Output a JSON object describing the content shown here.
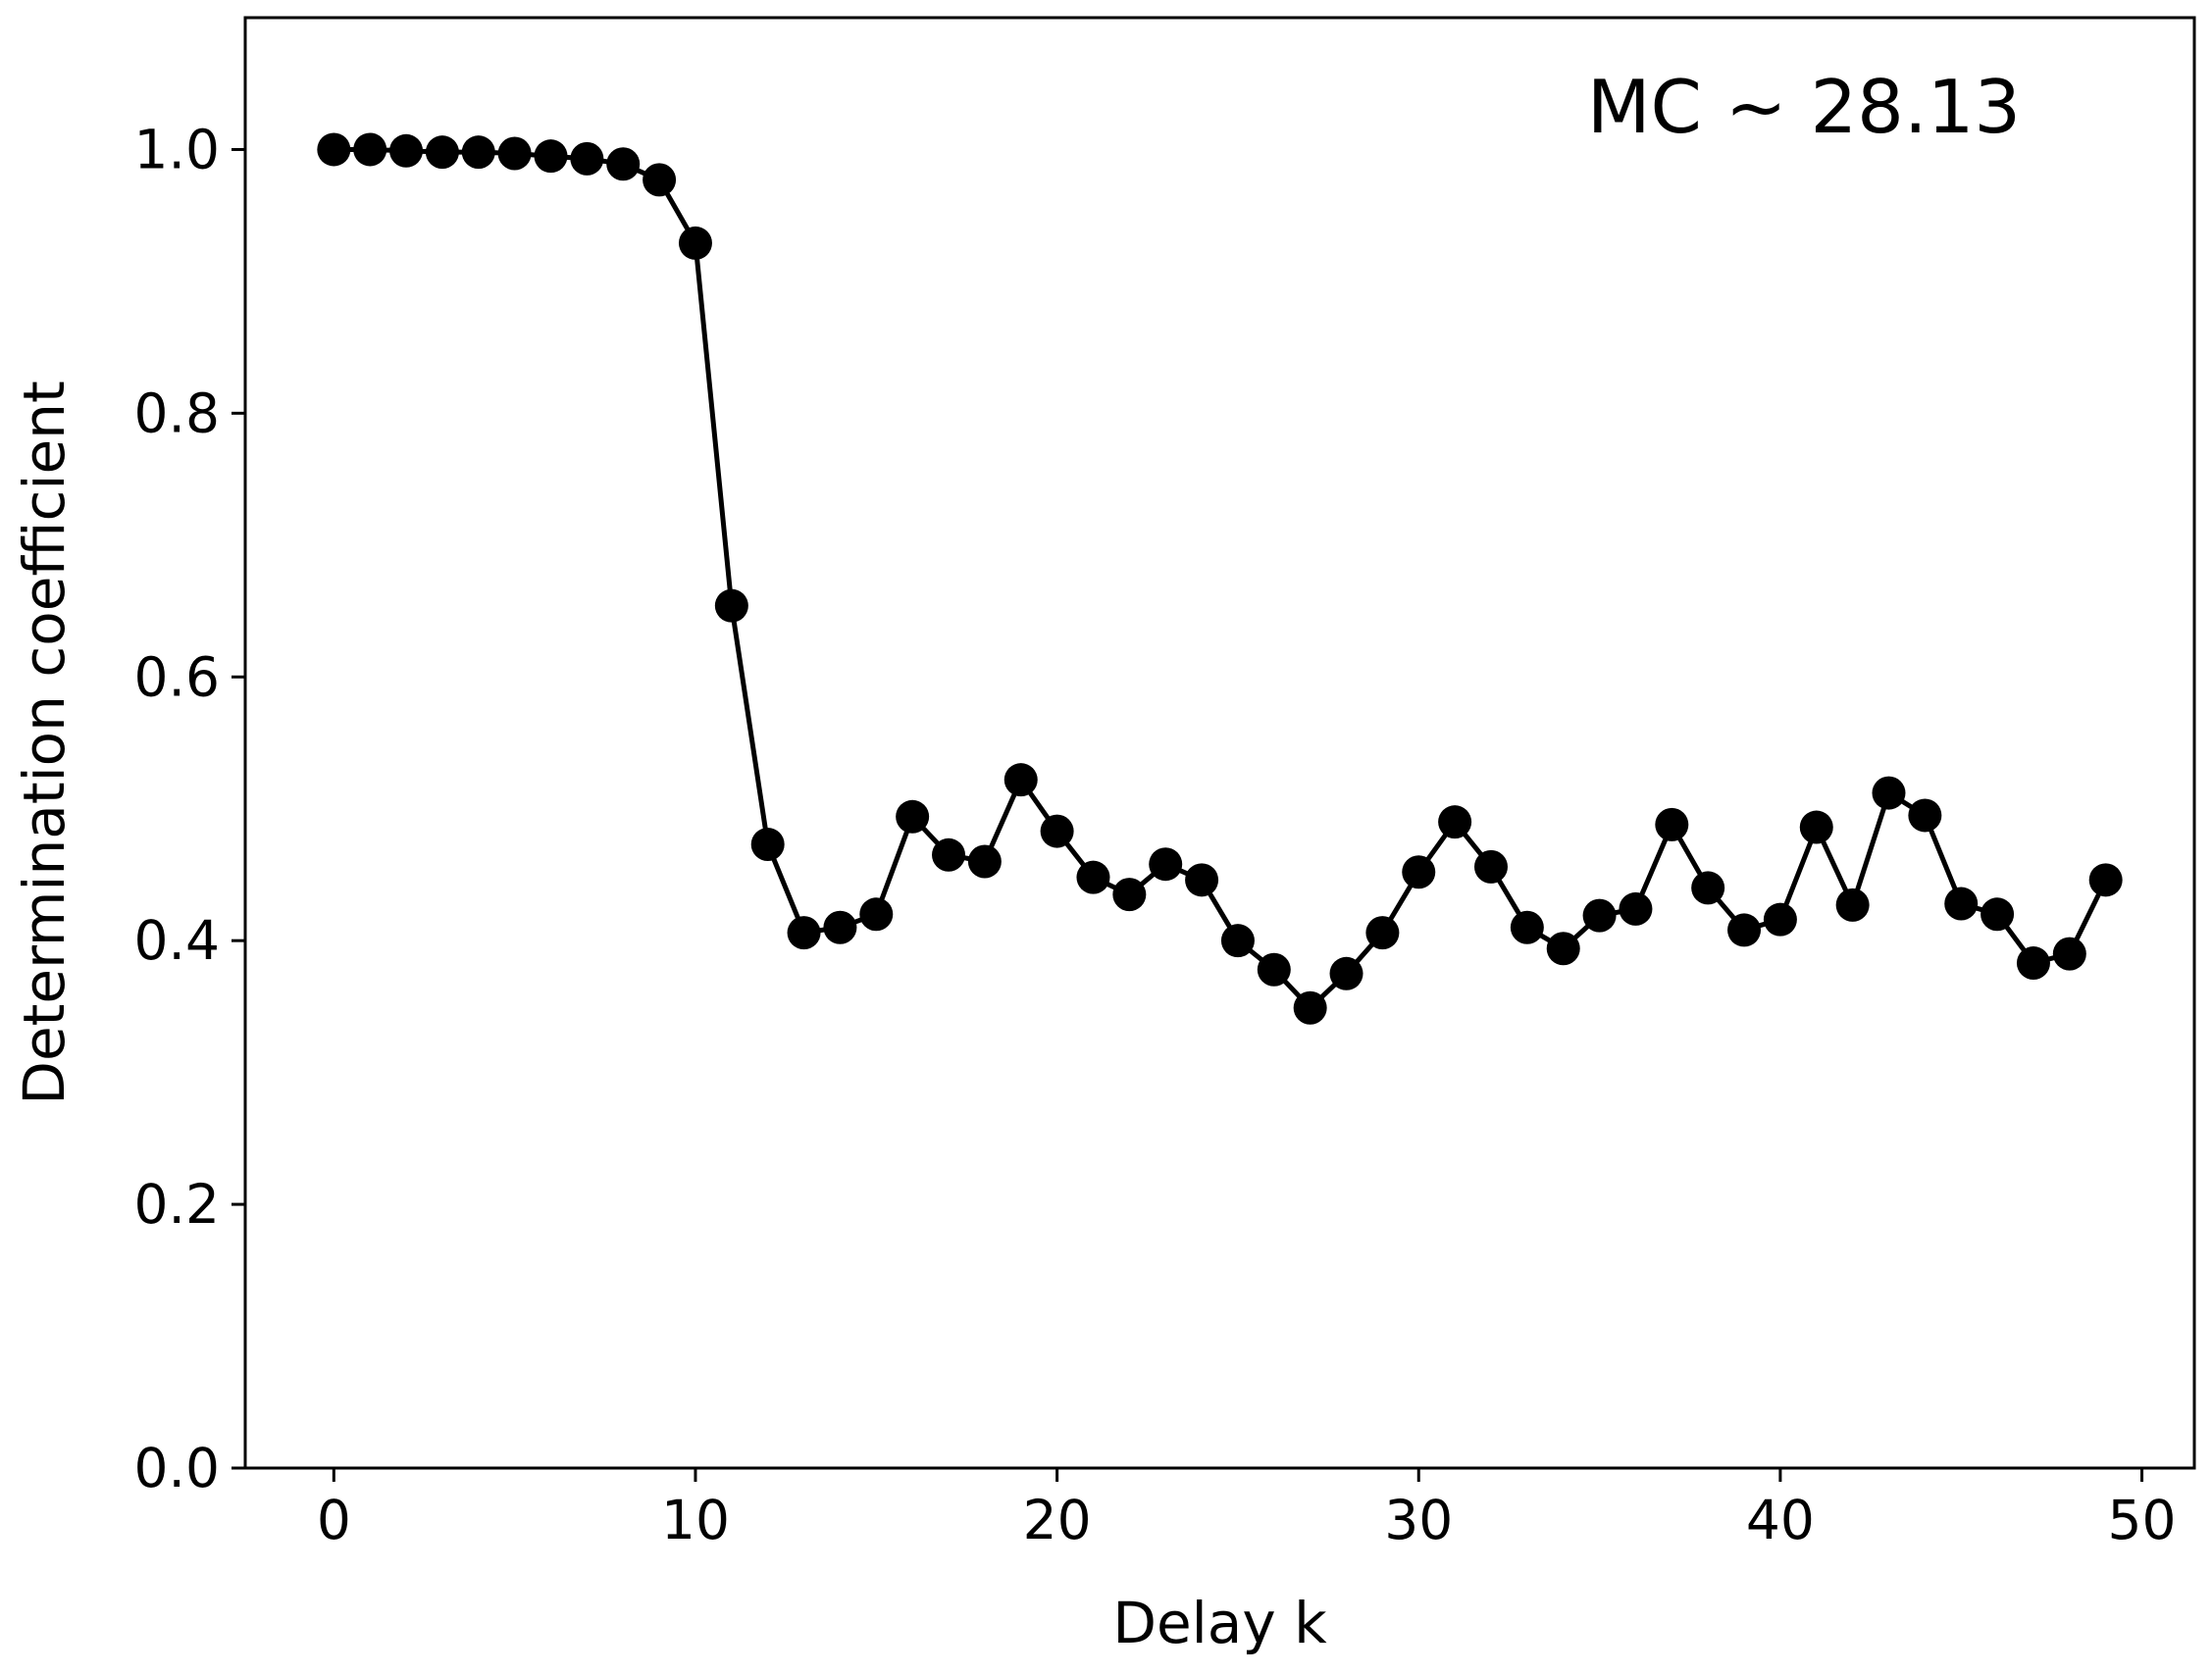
{
  "chart_data": {
    "type": "line",
    "title": "",
    "xlabel": "Delay k",
    "ylabel": "Determination coefficient",
    "annotation": "MC ~ 28.13",
    "xlim": [
      -2.45,
      51.45
    ],
    "ylim": [
      0.0,
      1.1
    ],
    "xticks": [
      0,
      10,
      20,
      30,
      40,
      50
    ],
    "yticks": [
      0.0,
      0.2,
      0.4,
      0.6,
      0.8,
      1.0
    ],
    "xtick_labels": [
      "0",
      "10",
      "20",
      "30",
      "40",
      "50"
    ],
    "ytick_labels": [
      "0.0",
      "0.2",
      "0.4",
      "0.6",
      "0.8",
      "1.0"
    ],
    "grid": false,
    "legend": "none",
    "line_color": "#000000",
    "marker": "circle",
    "series": [
      {
        "x": [
          0,
          1,
          2,
          3,
          4,
          5,
          6,
          7,
          8,
          9,
          10,
          11,
          12,
          13,
          14,
          15,
          16,
          17,
          18,
          19,
          20,
          21,
          22,
          23,
          24,
          25,
          26,
          27,
          28,
          29,
          30,
          31,
          32,
          33,
          34,
          35,
          36,
          37,
          38,
          39,
          40,
          41,
          42,
          43,
          44,
          45,
          46,
          47,
          48,
          49
        ],
        "values": [
          1.0,
          1.0,
          0.999,
          0.998,
          0.998,
          0.997,
          0.995,
          0.993,
          0.989,
          0.977,
          0.929,
          0.654,
          0.473,
          0.406,
          0.41,
          0.42,
          0.494,
          0.465,
          0.46,
          0.522,
          0.483,
          0.448,
          0.435,
          0.458,
          0.446,
          0.4,
          0.378,
          0.349,
          0.375,
          0.406,
          0.452,
          0.49,
          0.456,
          0.41,
          0.394,
          0.419,
          0.424,
          0.488,
          0.44,
          0.408,
          0.416,
          0.486,
          0.427,
          0.512,
          0.495,
          0.428,
          0.42,
          0.383,
          0.39,
          0.446
        ]
      }
    ]
  }
}
